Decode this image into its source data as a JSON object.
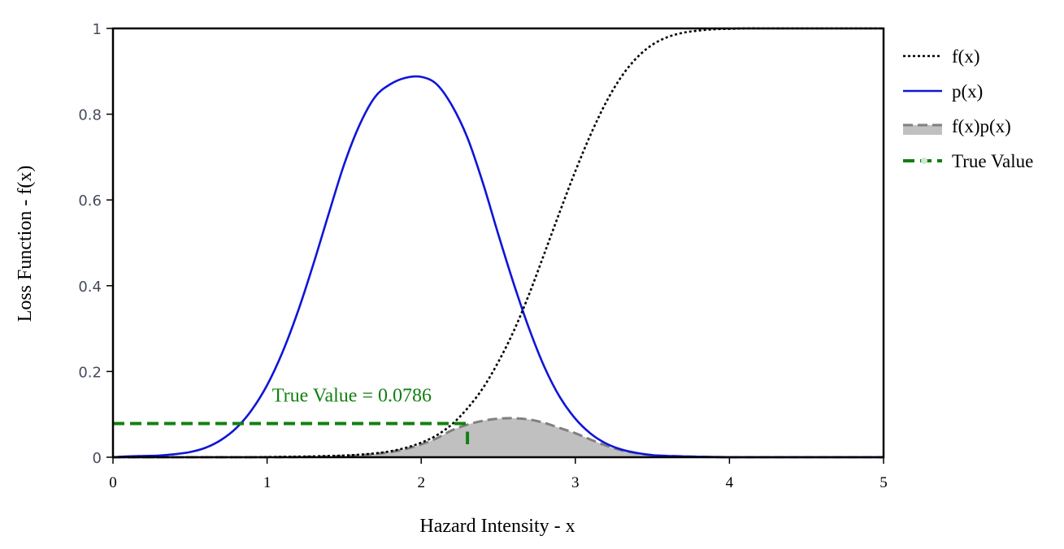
{
  "chart_data": {
    "type": "line",
    "xlabel": "Hazard Intensity - x",
    "ylabel": "Loss Function - f(x)",
    "xlim": [
      0,
      5
    ],
    "ylim": [
      0,
      1
    ],
    "x_ticks": [
      {
        "value": 0,
        "label": "0"
      },
      {
        "value": 1,
        "label": "1"
      },
      {
        "value": 2,
        "label": "2"
      },
      {
        "value": 3,
        "label": "3"
      },
      {
        "value": 4,
        "label": "4"
      },
      {
        "value": 5,
        "label": "5"
      }
    ],
    "y_ticks": [
      {
        "value": 0,
        "label": "0"
      },
      {
        "value": 0.2,
        "label": "0.2"
      },
      {
        "value": 0.4,
        "label": "0.4"
      },
      {
        "value": 0.6,
        "label": "0.6"
      },
      {
        "value": 0.8,
        "label": "0.8"
      },
      {
        "value": 1,
        "label": "1"
      }
    ],
    "x": [
      0,
      0.1,
      0.2,
      0.3,
      0.4,
      0.5,
      0.6,
      0.7,
      0.8,
      0.9,
      1.0,
      1.1,
      1.2,
      1.3,
      1.4,
      1.5,
      1.6,
      1.7,
      1.8,
      1.9,
      2.0,
      2.1,
      2.2,
      2.3,
      2.4,
      2.5,
      2.6,
      2.7,
      2.8,
      2.9,
      3.0,
      3.1,
      3.2,
      3.3,
      3.4,
      3.5,
      3.6,
      3.7,
      3.8,
      3.9,
      4.0,
      4.1,
      4.2,
      4.3,
      4.4,
      4.5,
      4.6,
      4.7,
      4.8,
      4.9,
      5.0
    ],
    "series": [
      {
        "name": "f(x)",
        "color": "#000000",
        "style": "dotted",
        "values": [
          0,
          0,
          0,
          0,
          0,
          0,
          0,
          0,
          0,
          0,
          0.0005,
          0.001,
          0.0015,
          0.002,
          0.003,
          0.004,
          0.006,
          0.009,
          0.014,
          0.022,
          0.034,
          0.051,
          0.077,
          0.114,
          0.161,
          0.222,
          0.294,
          0.38,
          0.476,
          0.573,
          0.667,
          0.753,
          0.828,
          0.888,
          0.932,
          0.962,
          0.98,
          0.99,
          0.995,
          0.998,
          0.999,
          1,
          1,
          1,
          1,
          1,
          1,
          1,
          1,
          1,
          1
        ]
      },
      {
        "name": "p(x)",
        "color": "#0f15d8",
        "style": "solid",
        "values": [
          0,
          0.002,
          0.003,
          0.004,
          0.007,
          0.012,
          0.022,
          0.04,
          0.068,
          0.11,
          0.168,
          0.245,
          0.34,
          0.45,
          0.568,
          0.683,
          0.775,
          0.84,
          0.87,
          0.885,
          0.887,
          0.87,
          0.82,
          0.745,
          0.64,
          0.52,
          0.405,
          0.3,
          0.21,
          0.14,
          0.09,
          0.055,
          0.032,
          0.018,
          0.01,
          0.005,
          0.003,
          0.002,
          0.001,
          0.0005,
          0,
          0,
          0,
          0,
          0,
          0,
          0,
          0,
          0,
          0,
          0
        ]
      },
      {
        "name": "f(x)p(x)",
        "color": "#808080",
        "fill": "#c0c0c0",
        "style": "dashed-filled",
        "values": [
          0,
          0,
          0,
          0,
          0,
          0,
          0,
          0,
          0,
          0,
          0,
          0.0002,
          0.0005,
          0.001,
          0.0017,
          0.0027,
          0.0047,
          0.0076,
          0.012,
          0.019,
          0.03,
          0.044,
          0.063,
          0.076,
          0.085,
          0.09,
          0.091,
          0.088,
          0.08,
          0.068,
          0.056,
          0.041,
          0.027,
          0.016,
          0.0093,
          0.0048,
          0.0029,
          0.002,
          0.001,
          0.0005,
          0,
          0,
          0,
          0,
          0,
          0,
          0,
          0,
          0,
          0,
          0
        ]
      },
      {
        "name": "True Value",
        "color": "#118011",
        "style": "dashed-thick",
        "value": 0.0786,
        "x_end": 2.3
      }
    ],
    "annotation": {
      "text": "True Value = 0.0786",
      "x": 1.55,
      "y": 0.12,
      "color": "#118011"
    },
    "legend": {
      "placement": "right"
    },
    "grid": false
  }
}
